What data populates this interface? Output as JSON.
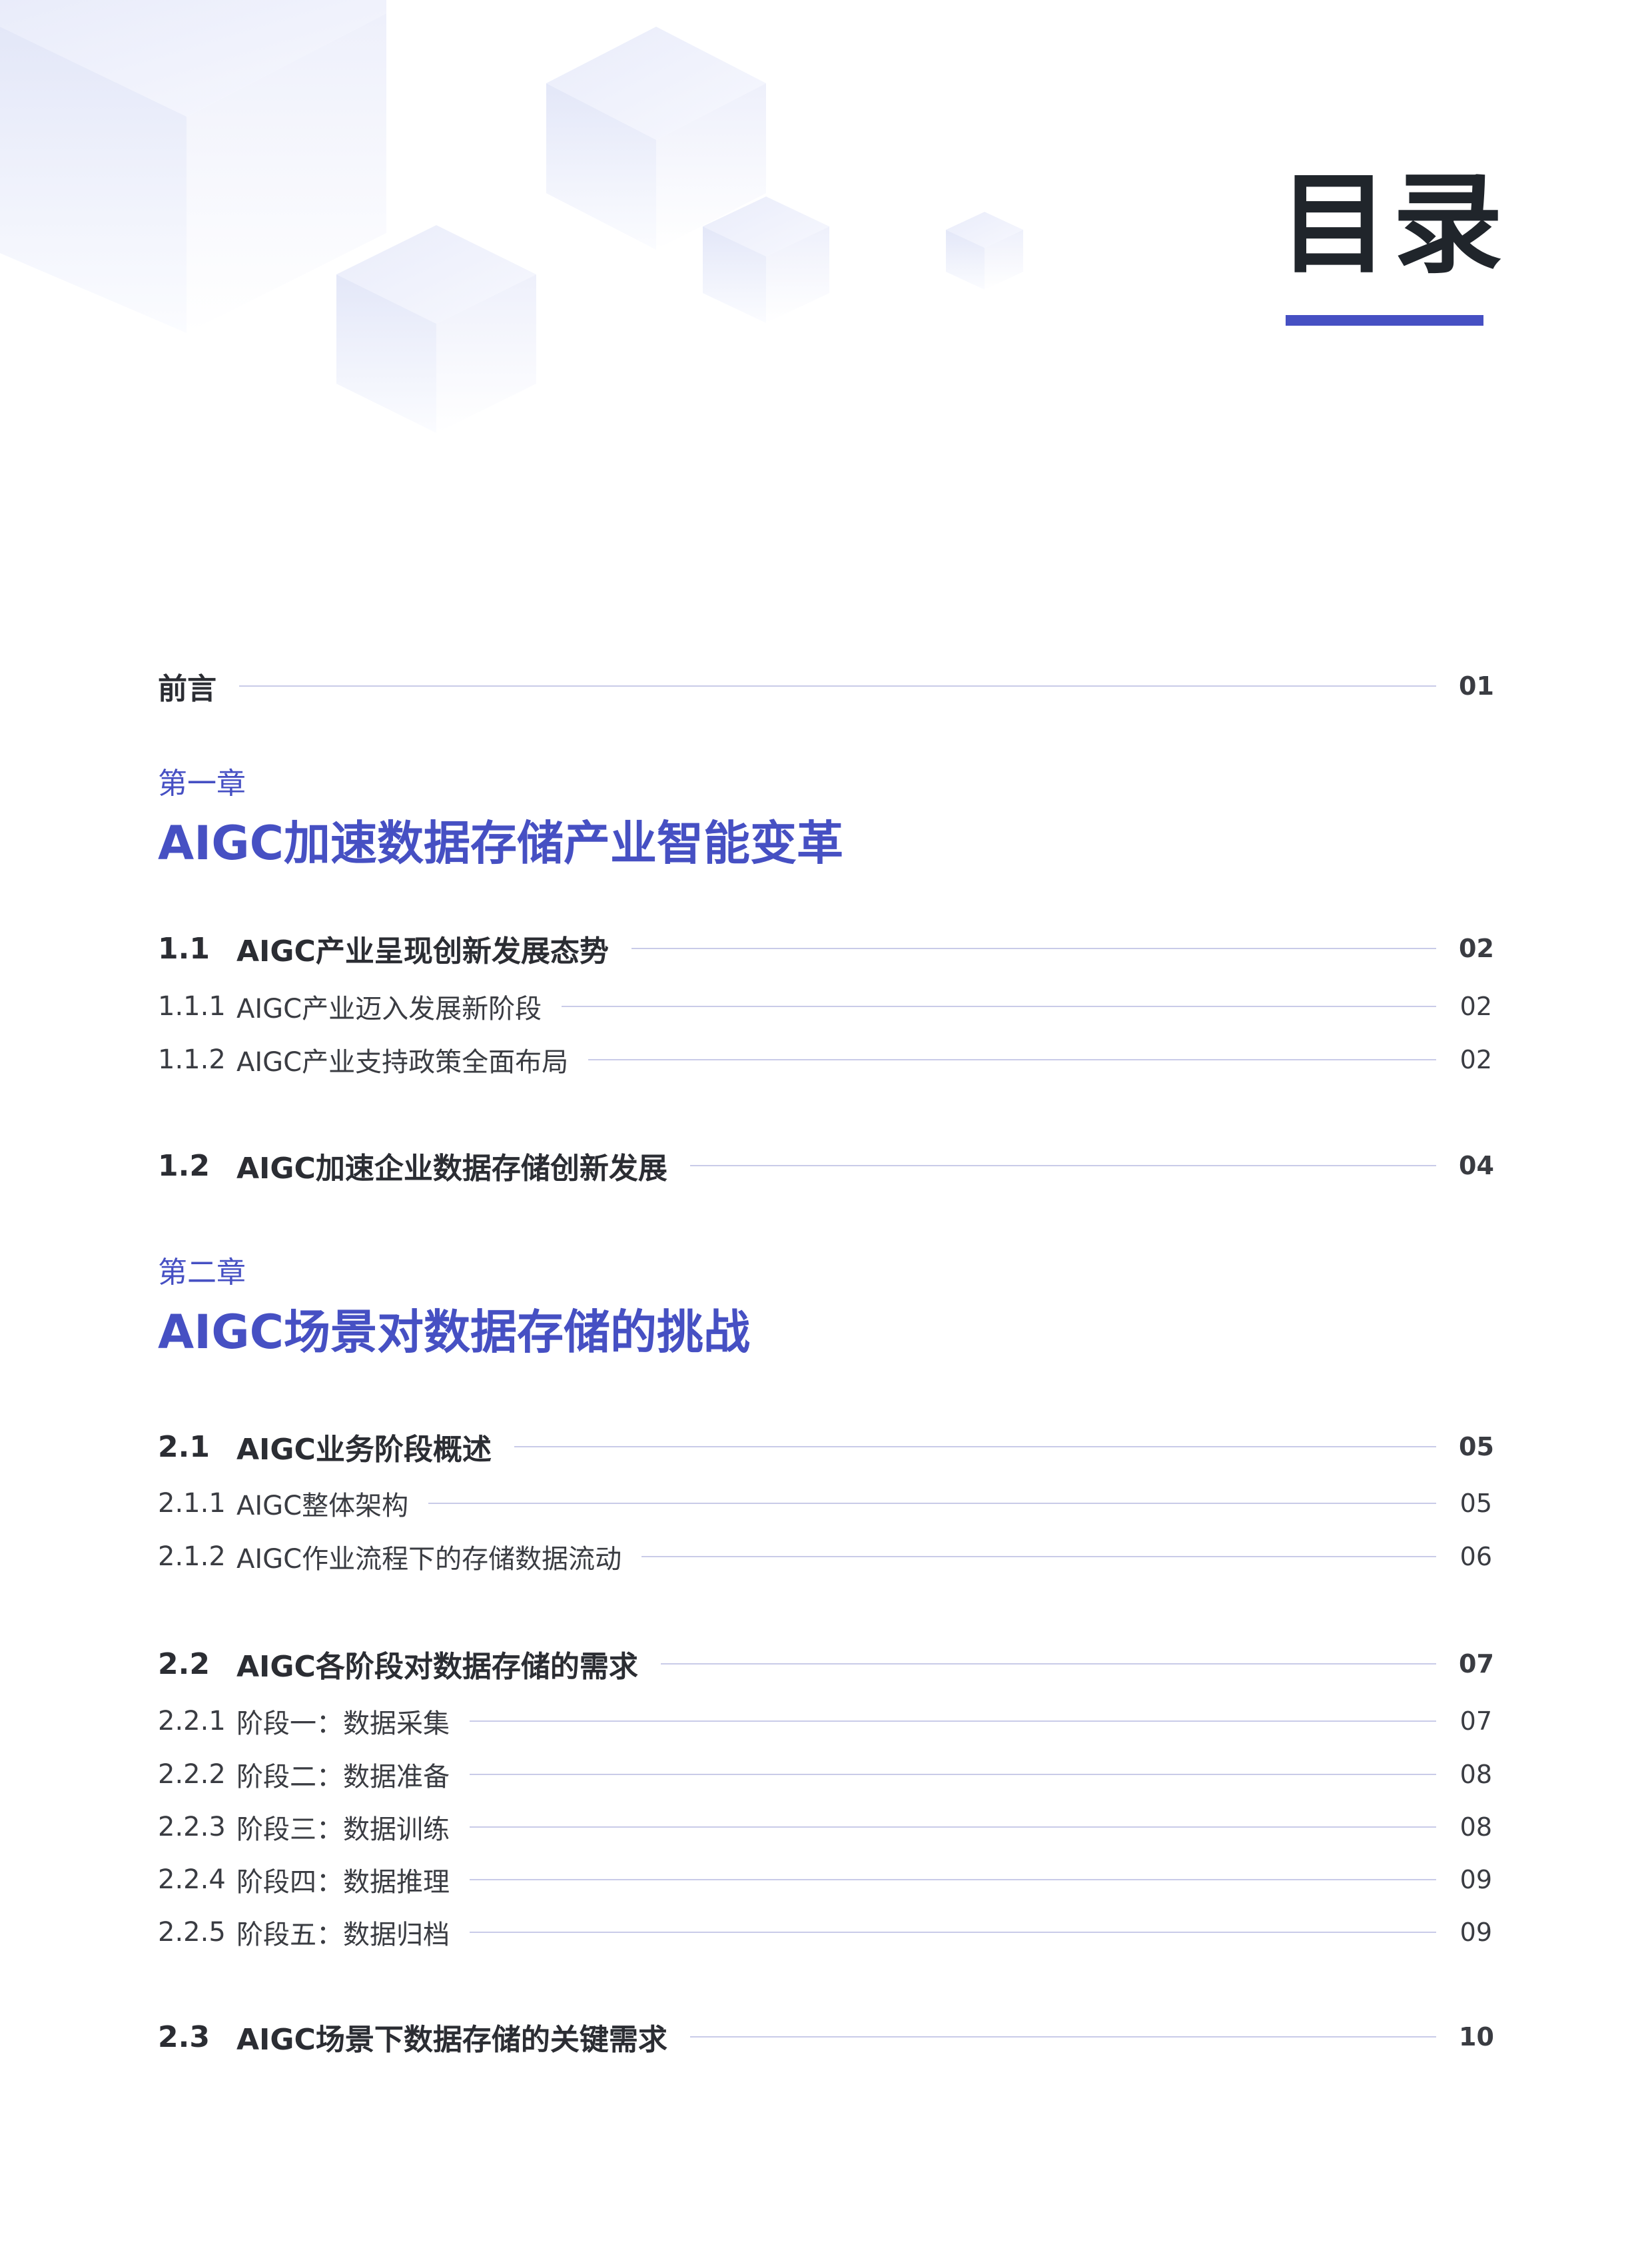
{
  "title": "目录",
  "colors": {
    "accent": "#4650c3",
    "text": "#2b2d33",
    "rule": "#c9cbe8"
  },
  "preface": {
    "label": "前言",
    "page": "01"
  },
  "chapters": [
    {
      "label": "第一章",
      "title": "AIGC加速数据存储产业智能变革",
      "sections": [
        {
          "num": "1.1",
          "title": "AIGC产业呈现创新发展态势",
          "page": "02",
          "subs": [
            {
              "num": "1.1.1",
              "title": "AIGC产业迈入发展新阶段",
              "page": "02"
            },
            {
              "num": "1.1.2",
              "title": "AIGC产业支持政策全面布局",
              "page": "02"
            }
          ]
        },
        {
          "num": "1.2",
          "title": "AIGC加速企业数据存储创新发展",
          "page": "04",
          "subs": []
        }
      ]
    },
    {
      "label": "第二章",
      "title": "AIGC场景对数据存储的挑战",
      "sections": [
        {
          "num": "2.1",
          "title": "AIGC业务阶段概述",
          "page": "05",
          "subs": [
            {
              "num": "2.1.1",
              "title": "AIGC整体架构",
              "page": "05"
            },
            {
              "num": "2.1.2",
              "title": "AIGC作业流程下的存储数据流动",
              "page": "06"
            }
          ]
        },
        {
          "num": "2.2",
          "title": "AIGC各阶段对数据存储的需求",
          "page": "07",
          "subs": [
            {
              "num": "2.2.1",
              "title": "阶段一：数据采集",
              "page": "07"
            },
            {
              "num": "2.2.2",
              "title": "阶段二：数据准备",
              "page": "08"
            },
            {
              "num": "2.2.3",
              "title": "阶段三：数据训练",
              "page": "08"
            },
            {
              "num": "2.2.4",
              "title": "阶段四：数据推理",
              "page": "09"
            },
            {
              "num": "2.2.5",
              "title": "阶段五：数据归档",
              "page": "09"
            }
          ]
        },
        {
          "num": "2.3",
          "title": "AIGC场景下数据存储的关键需求",
          "page": "10",
          "subs": []
        }
      ]
    }
  ]
}
